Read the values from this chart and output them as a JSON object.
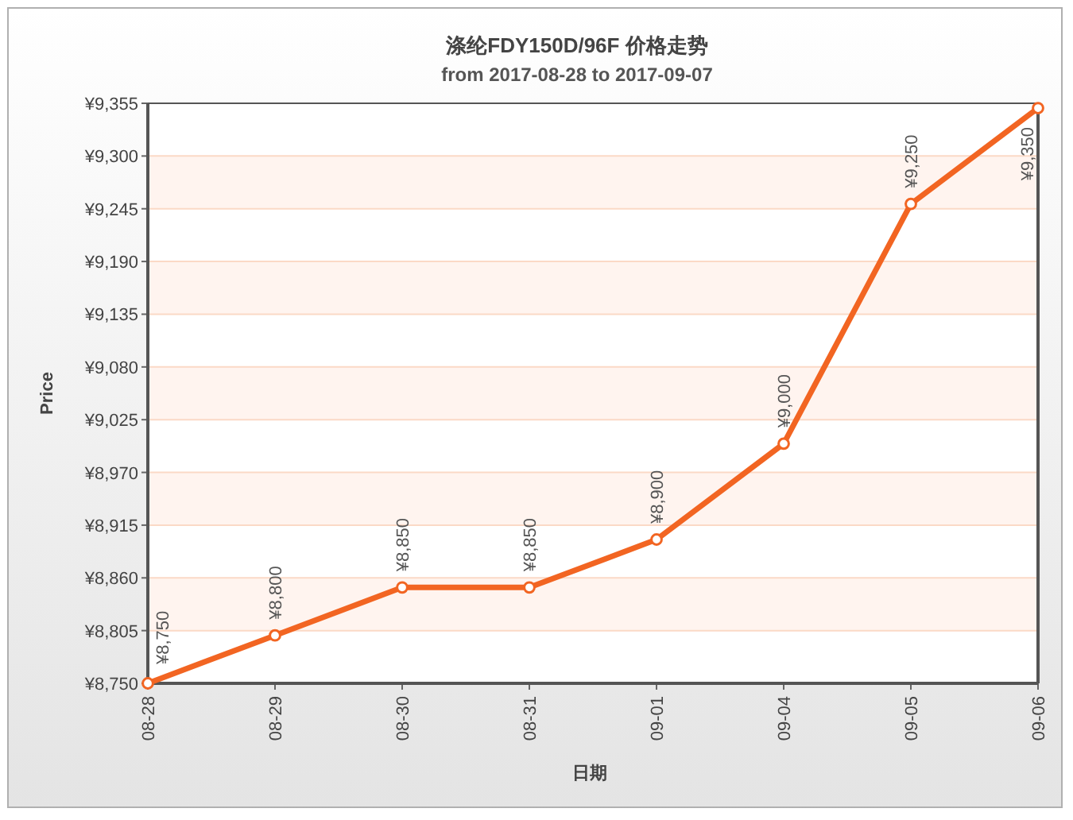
{
  "chart_data": {
    "type": "line",
    "title": "涤纶FDY150D/96F 价格走势",
    "subtitle": "from 2017-08-28 to 2017-09-07",
    "xlabel": "日期",
    "ylabel": "Price",
    "categories": [
      "08-28",
      "08-29",
      "08-30",
      "08-31",
      "09-01",
      "09-04",
      "09-05",
      "09-06"
    ],
    "series": [
      {
        "color": "#f26522",
        "values": [
          8750,
          8800,
          8850,
          8850,
          8900,
          9000,
          9250,
          9350
        ],
        "value_labels": [
          "¥8,750",
          "¥8,800",
          "¥8,850",
          "¥8,850",
          "¥8,900",
          "¥9,000",
          "¥9,250",
          "¥9,350"
        ]
      }
    ],
    "ylim": [
      8750,
      9355
    ],
    "yticks": [
      {
        "value": 8750,
        "label": "¥8,750"
      },
      {
        "value": 8805,
        "label": "¥8,805"
      },
      {
        "value": 8860,
        "label": "¥8,860"
      },
      {
        "value": 8915,
        "label": "¥8,915"
      },
      {
        "value": 8970,
        "label": "¥8,970"
      },
      {
        "value": 9025,
        "label": "¥9,025"
      },
      {
        "value": 9080,
        "label": "¥9,080"
      },
      {
        "value": 9135,
        "label": "¥9,135"
      },
      {
        "value": 9190,
        "label": "¥9,190"
      },
      {
        "value": 9245,
        "label": "¥9,245"
      },
      {
        "value": 9300,
        "label": "¥9,300"
      },
      {
        "value": 9355,
        "label": "¥9,355"
      }
    ],
    "grid": "y",
    "marker": "circle",
    "line_style": "solid"
  }
}
